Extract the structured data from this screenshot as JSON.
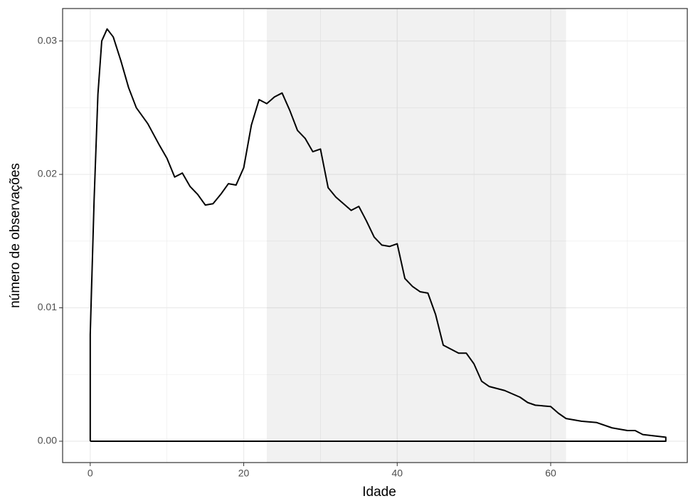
{
  "chart_data": {
    "type": "line",
    "x_label": "Idade",
    "y_label": "número de observações",
    "x": [
      0,
      0,
      0.5,
      1,
      1.5,
      2.2,
      3,
      4,
      5,
      6,
      7.5,
      9,
      10,
      11,
      12,
      13,
      14,
      15,
      16,
      17,
      18,
      19,
      20,
      21,
      22,
      23,
      24,
      25,
      26,
      27,
      28,
      29,
      30,
      31,
      32,
      33,
      34,
      35,
      36,
      37,
      38,
      39,
      40,
      41,
      42,
      43,
      44,
      45,
      46,
      47,
      48,
      49,
      50,
      51,
      52,
      54,
      56,
      57,
      58,
      60,
      61,
      62,
      64,
      66,
      68,
      70,
      71,
      72,
      75,
      75,
      0
    ],
    "series": [
      {
        "color": "#000000",
        "values": [
          0,
          0.008,
          0.018,
          0.026,
          0.03,
          0.0309,
          0.0303,
          0.0285,
          0.0265,
          0.025,
          0.0238,
          0.0222,
          0.0212,
          0.0198,
          0.0201,
          0.0191,
          0.0185,
          0.0177,
          0.0178,
          0.0185,
          0.0193,
          0.0192,
          0.0205,
          0.0237,
          0.0256,
          0.0253,
          0.0258,
          0.0261,
          0.0248,
          0.0233,
          0.0227,
          0.0217,
          0.0219,
          0.019,
          0.0183,
          0.0178,
          0.0173,
          0.0176,
          0.0165,
          0.0153,
          0.0147,
          0.0146,
          0.0148,
          0.0122,
          0.0116,
          0.0112,
          0.0111,
          0.0095,
          0.0072,
          0.0069,
          0.0066,
          0.0066,
          0.0058,
          0.0045,
          0.0041,
          0.0038,
          0.0033,
          0.0029,
          0.0027,
          0.0026,
          0.0021,
          0.0017,
          0.0015,
          0.0014,
          0.001,
          0.0008,
          0.0008,
          0.0005,
          0.0003,
          0,
          0
        ]
      }
    ],
    "shade": [
      23,
      62
    ],
    "xlim": [
      -3.6,
      77.8
    ],
    "ylim": [
      -0.0016,
      0.03243
    ],
    "xticks": [
      0,
      20,
      40,
      60
    ],
    "yticks": [
      {
        "value": 0,
        "label": "0.00"
      },
      0.01,
      0.02,
      0.03
    ],
    "minor_xticks": [
      10,
      30,
      50,
      70
    ],
    "minor_yticks": [
      0.005,
      0.015,
      0.025
    ],
    "grid": true
  }
}
